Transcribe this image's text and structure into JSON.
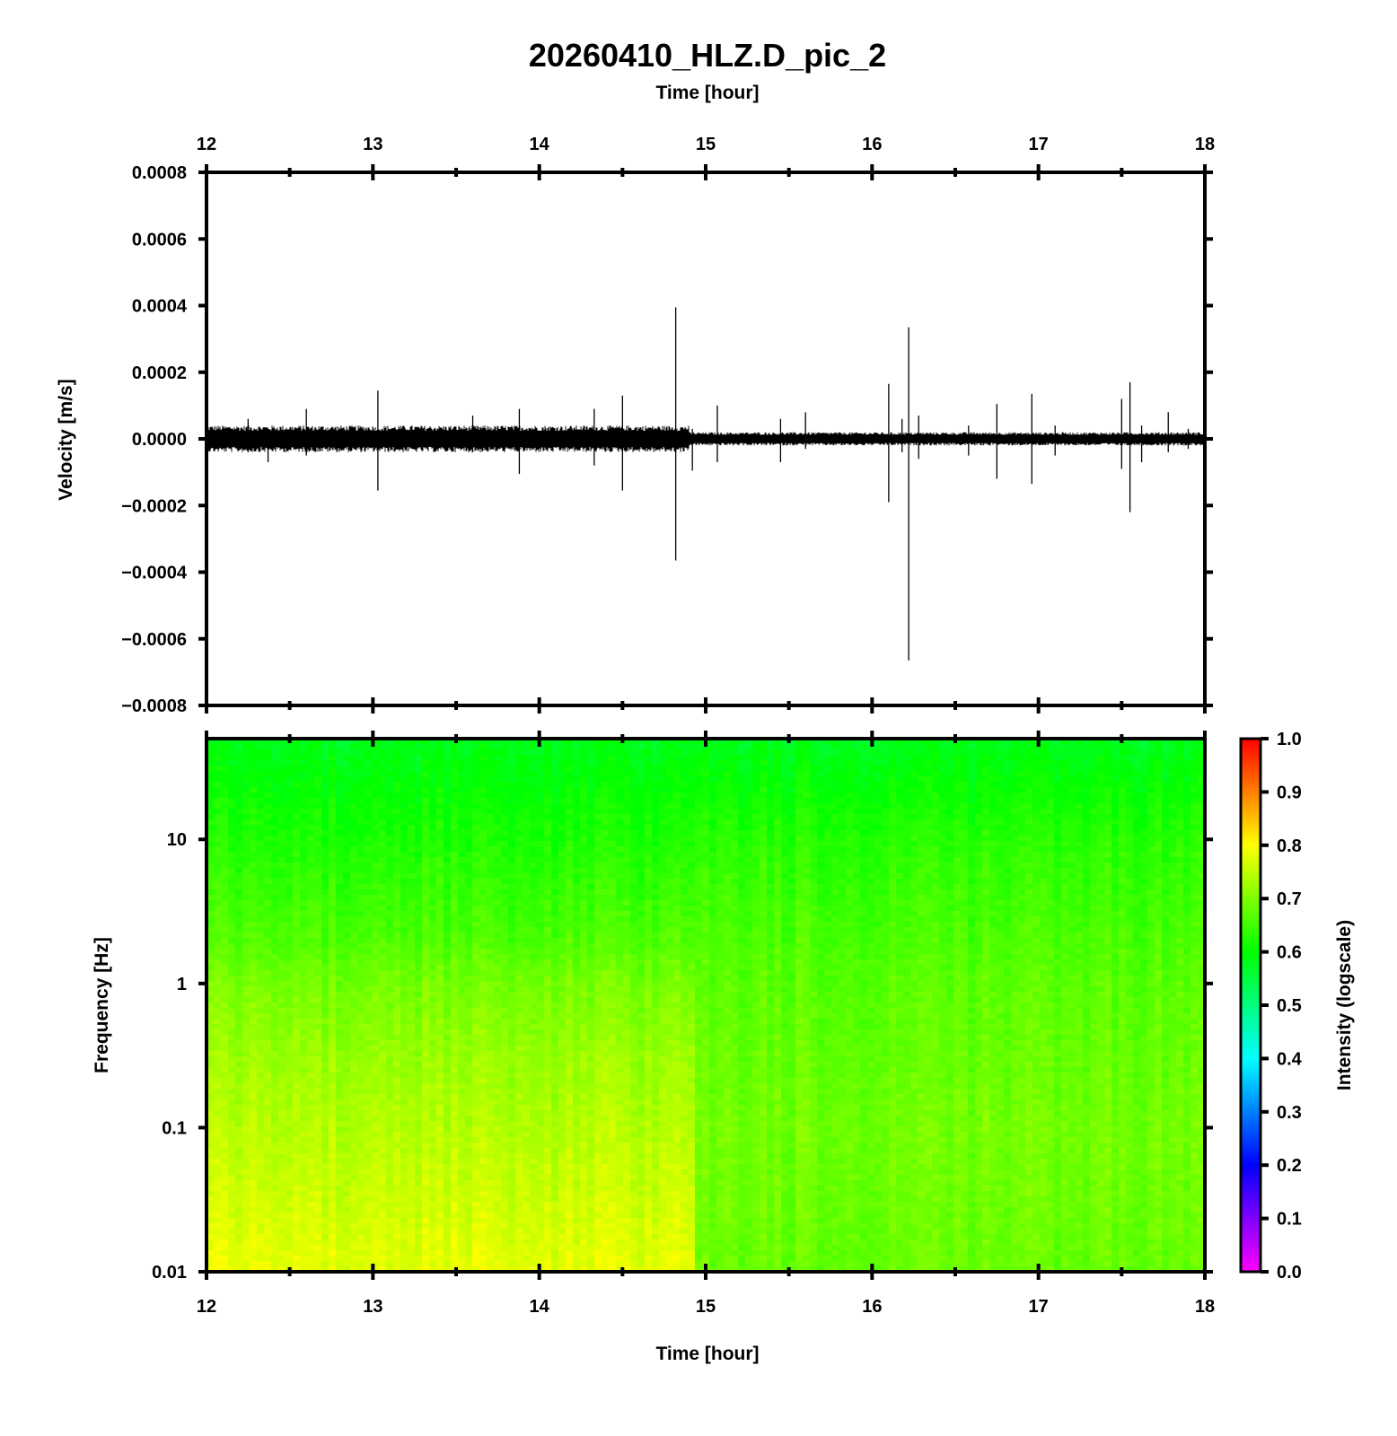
{
  "title": "20260410_HLZ.D_pic_2",
  "chart_data": [
    {
      "type": "line",
      "name": "seismogram",
      "xlabel_top": "Time [hour]",
      "ylabel": "Velocity [m/s]",
      "xlim": [
        12,
        18
      ],
      "ylim": [
        -0.0008,
        0.0008
      ],
      "xticks": [
        "12",
        "13",
        "14",
        "15",
        "16",
        "17",
        "18"
      ],
      "yticks": [
        {
          "value": 0.0008,
          "label": "0.0008"
        },
        {
          "value": 0.0006,
          "label": "0.0006"
        },
        {
          "value": 0.0004,
          "label": "0.0004"
        },
        {
          "value": 0.0002,
          "label": "0.0002"
        },
        {
          "value": 0.0,
          "label": "0.0000"
        },
        {
          "value": -0.0002,
          "label": "−0.0002"
        },
        {
          "value": -0.0004,
          "label": "−0.0004"
        },
        {
          "value": -0.0006,
          "label": "−0.0006"
        },
        {
          "value": -0.0008,
          "label": "−0.0008"
        }
      ],
      "noise_band": [
        {
          "x": [
            12.0,
            14.9
          ],
          "amplitude": 4e-05
        },
        {
          "x": [
            14.9,
            18.0
          ],
          "amplitude": 2e-05
        }
      ],
      "spikes": [
        {
          "t": 12.25,
          "max": 6e-05,
          "min": -4e-05
        },
        {
          "t": 12.37,
          "max": 3e-05,
          "min": -7e-05
        },
        {
          "t": 12.6,
          "max": 9e-05,
          "min": -5e-05
        },
        {
          "t": 13.03,
          "max": 0.000145,
          "min": -0.000155
        },
        {
          "t": 13.6,
          "max": 7e-05,
          "min": -4e-05
        },
        {
          "t": 13.88,
          "max": 9e-05,
          "min": -0.000105
        },
        {
          "t": 14.33,
          "max": 9e-05,
          "min": -8e-05
        },
        {
          "t": 14.5,
          "max": 0.00013,
          "min": -0.000155
        },
        {
          "t": 14.82,
          "max": 0.000395,
          "min": -0.000365
        },
        {
          "t": 14.92,
          "max": 3e-05,
          "min": -9.5e-05
        },
        {
          "t": 15.07,
          "max": 0.0001,
          "min": -7e-05
        },
        {
          "t": 15.45,
          "max": 6e-05,
          "min": -7e-05
        },
        {
          "t": 15.6,
          "max": 8e-05,
          "min": -3e-05
        },
        {
          "t": 16.1,
          "max": 0.000165,
          "min": -0.00019
        },
        {
          "t": 16.18,
          "max": 6e-05,
          "min": -4e-05
        },
        {
          "t": 16.22,
          "max": 0.000335,
          "min": -0.000665
        },
        {
          "t": 16.28,
          "max": 7e-05,
          "min": -6e-05
        },
        {
          "t": 16.58,
          "max": 4e-05,
          "min": -5e-05
        },
        {
          "t": 16.75,
          "max": 0.000105,
          "min": -0.00012
        },
        {
          "t": 16.96,
          "max": 0.000135,
          "min": -0.000135
        },
        {
          "t": 17.1,
          "max": 4e-05,
          "min": -5e-05
        },
        {
          "t": 17.5,
          "max": 0.00012,
          "min": -9e-05
        },
        {
          "t": 17.55,
          "max": 0.00017,
          "min": -0.00022
        },
        {
          "t": 17.62,
          "max": 4e-05,
          "min": -7e-05
        },
        {
          "t": 17.78,
          "max": 8e-05,
          "min": -4e-05
        },
        {
          "t": 17.9,
          "max": 3e-05,
          "min": -3e-05
        }
      ]
    },
    {
      "type": "heatmap",
      "name": "spectrogram",
      "xlabel": "Time [hour]",
      "ylabel": "Frequency [Hz]",
      "xlim": [
        12,
        18
      ],
      "ylim": [
        0.01,
        50
      ],
      "yscale": "log",
      "xticks": [
        "12",
        "13",
        "14",
        "15",
        "16",
        "17",
        "18"
      ],
      "yticks": [
        {
          "value": 10,
          "label": "10"
        },
        {
          "value": 1,
          "label": "1"
        },
        {
          "value": 0.1,
          "label": "0.1"
        },
        {
          "value": 0.01,
          "label": "0.01"
        }
      ],
      "intensity_profile": [
        {
          "freq": 50,
          "early": 0.58,
          "late": 0.58
        },
        {
          "freq": 10,
          "early": 0.62,
          "late": 0.63
        },
        {
          "freq": 2,
          "early": 0.66,
          "late": 0.66
        },
        {
          "freq": 1,
          "early": 0.69,
          "late": 0.67
        },
        {
          "freq": 0.3,
          "early": 0.72,
          "late": 0.68
        },
        {
          "freq": 0.1,
          "early": 0.74,
          "late": 0.69
        },
        {
          "freq": 0.01,
          "early": 0.78,
          "late": 0.68
        }
      ],
      "regime_change_time": 14.95,
      "colorbar": {
        "label": "Intensity (logscale)",
        "range": [
          0.0,
          1.0
        ],
        "ticks": [
          "1.0",
          "0.9",
          "0.8",
          "0.7",
          "0.6",
          "0.5",
          "0.4",
          "0.3",
          "0.2",
          "0.1",
          "0.0"
        ],
        "colors": [
          "#ff00ff",
          "#0000ff",
          "#00ffff",
          "#00ff00",
          "#ffff00",
          "#ff0000"
        ]
      }
    }
  ]
}
